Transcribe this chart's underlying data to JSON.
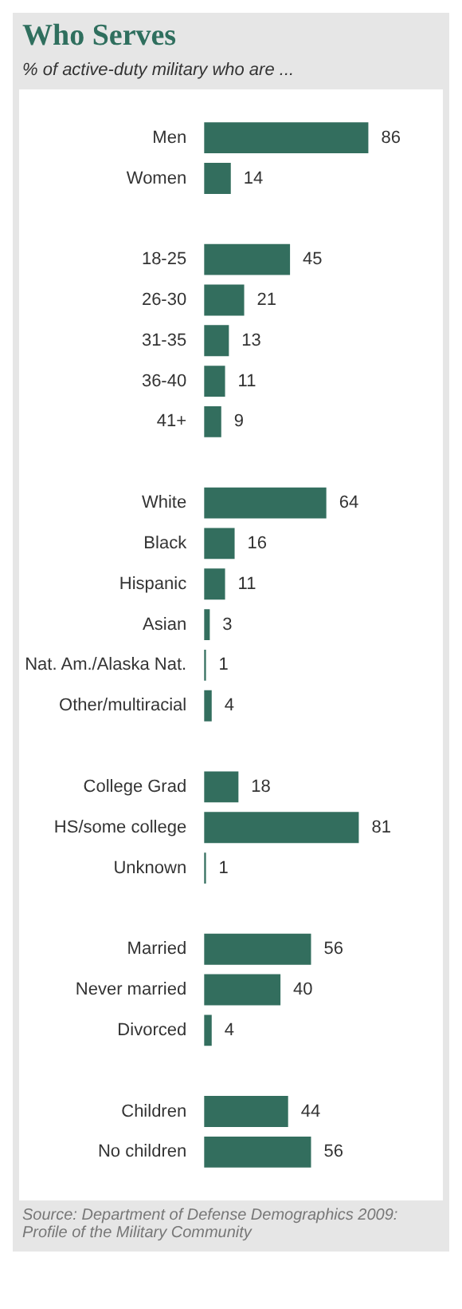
{
  "chart_data": {
    "type": "bar",
    "orientation": "horizontal",
    "title": "Who Serves",
    "subtitle": "% of active-duty military who are ...",
    "categories": [
      "Men",
      "Women",
      null,
      "18-25",
      "26-30",
      "31-35",
      "36-40",
      "41+",
      null,
      "White",
      "Black",
      "Hispanic",
      "Asian",
      "Nat. Am./Alaska Nat.",
      "Other/multiracial",
      null,
      "College Grad",
      "HS/some college",
      "Unknown",
      null,
      "Married",
      "Never married",
      "Divorced",
      null,
      "Children",
      "No children"
    ],
    "values": [
      86,
      14,
      null,
      45,
      21,
      13,
      11,
      9,
      null,
      64,
      16,
      11,
      3,
      1,
      4,
      null,
      18,
      81,
      1,
      null,
      56,
      40,
      4,
      null,
      44,
      56
    ],
    "color": "#336e5e",
    "data_labels": true,
    "legend": false,
    "annotations": [
      "Source: Department of Defense Demographics 2009: Profile of the Military Community"
    ]
  }
}
